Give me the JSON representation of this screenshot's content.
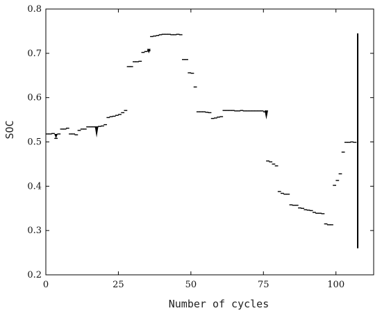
{
  "chart_data": {
    "type": "scatter",
    "title": "",
    "xlabel": "Number of cycles",
    "ylabel": "SOC",
    "xlim": [
      0,
      113
    ],
    "ylim": [
      0.2,
      0.8
    ],
    "xticks": [
      "0",
      "25",
      "50",
      "75",
      "100"
    ],
    "yticks": [
      "0.2",
      "0.3",
      "0.4",
      "0.5",
      "0.6",
      "0.7",
      "0.8"
    ],
    "grid": false,
    "legend": "none",
    "series": [
      {
        "points": [
          [
            0.5,
            0.518
          ],
          [
            1.5,
            0.518
          ],
          [
            2.5,
            0.519
          ],
          [
            3.5,
            0.508
          ],
          [
            4.5,
            0.518
          ],
          [
            5.5,
            0.529
          ],
          [
            6.5,
            0.529
          ],
          [
            7.5,
            0.531
          ],
          [
            8.5,
            0.518
          ],
          [
            9.5,
            0.518
          ],
          [
            10.5,
            0.516
          ],
          [
            11.5,
            0.526
          ],
          [
            12.5,
            0.529
          ],
          [
            13.5,
            0.529
          ],
          [
            14.5,
            0.534
          ],
          [
            15.5,
            0.534
          ],
          [
            16.5,
            0.534
          ],
          [
            17.5,
            0.533
          ],
          [
            18.5,
            0.535
          ],
          [
            19.5,
            0.536
          ],
          [
            20.5,
            0.539
          ],
          [
            21.5,
            0.555
          ],
          [
            22.5,
            0.557
          ],
          [
            23.5,
            0.558
          ],
          [
            24.5,
            0.56
          ],
          [
            25.5,
            0.562
          ],
          [
            26.5,
            0.566
          ],
          [
            27.5,
            0.571
          ],
          [
            28.5,
            0.67
          ],
          [
            29.5,
            0.67
          ],
          [
            30.5,
            0.681
          ],
          [
            31.5,
            0.681
          ],
          [
            32.5,
            0.682
          ],
          [
            33.5,
            0.702
          ],
          [
            34.5,
            0.704
          ],
          [
            35.5,
            0.706
          ],
          [
            36.5,
            0.738
          ],
          [
            37.5,
            0.739
          ],
          [
            38.5,
            0.74
          ],
          [
            39.5,
            0.742
          ],
          [
            40.5,
            0.743
          ],
          [
            41.5,
            0.743
          ],
          [
            42.5,
            0.743
          ],
          [
            43.5,
            0.742
          ],
          [
            44.5,
            0.742
          ],
          [
            45.5,
            0.743
          ],
          [
            46.5,
            0.742
          ],
          [
            47.5,
            0.686
          ],
          [
            48.5,
            0.686
          ],
          [
            49.5,
            0.656
          ],
          [
            50.5,
            0.655
          ],
          [
            51.5,
            0.624
          ],
          [
            52.5,
            0.568
          ],
          [
            53.5,
            0.568
          ],
          [
            54.5,
            0.568
          ],
          [
            55.5,
            0.567
          ],
          [
            56.5,
            0.566
          ],
          [
            57.5,
            0.553
          ],
          [
            58.5,
            0.554
          ],
          [
            59.5,
            0.556
          ],
          [
            60.5,
            0.557
          ],
          [
            61.5,
            0.571
          ],
          [
            62.5,
            0.571
          ],
          [
            63.5,
            0.571
          ],
          [
            64.5,
            0.571
          ],
          [
            65.5,
            0.57
          ],
          [
            66.5,
            0.57
          ],
          [
            67.5,
            0.571
          ],
          [
            68.5,
            0.57
          ],
          [
            69.5,
            0.57
          ],
          [
            70.5,
            0.57
          ],
          [
            71.5,
            0.57
          ],
          [
            72.5,
            0.57
          ],
          [
            73.5,
            0.57
          ],
          [
            74.5,
            0.57
          ],
          [
            75.5,
            0.568
          ],
          [
            76.5,
            0.457
          ],
          [
            77.5,
            0.455
          ],
          [
            78.5,
            0.45
          ],
          [
            79.5,
            0.446
          ],
          [
            80.5,
            0.388
          ],
          [
            81.5,
            0.384
          ],
          [
            82.5,
            0.382
          ],
          [
            83.5,
            0.382
          ],
          [
            84.5,
            0.358
          ],
          [
            85.5,
            0.357
          ],
          [
            86.5,
            0.357
          ],
          [
            87.5,
            0.351
          ],
          [
            88.5,
            0.35
          ],
          [
            89.5,
            0.347
          ],
          [
            90.5,
            0.346
          ],
          [
            91.5,
            0.345
          ],
          [
            92.5,
            0.341
          ],
          [
            93.5,
            0.339
          ],
          [
            94.5,
            0.339
          ],
          [
            95.5,
            0.338
          ],
          [
            96.5,
            0.315
          ],
          [
            97.5,
            0.313
          ],
          [
            98.5,
            0.313
          ],
          [
            99.5,
            0.402
          ],
          [
            100.5,
            0.413
          ],
          [
            101.5,
            0.428
          ],
          [
            102.5,
            0.477
          ],
          [
            103.5,
            0.499
          ],
          [
            104.5,
            0.499
          ],
          [
            105.5,
            0.5
          ],
          [
            106.5,
            0.499
          ]
        ],
        "spikes": [
          {
            "x": 3.5,
            "from": 0.518,
            "to": 0.508
          },
          {
            "x": 17.5,
            "from": 0.535,
            "to": 0.51
          },
          {
            "x": 35.5,
            "from": 0.71,
            "to": 0.7
          },
          {
            "x": 76.0,
            "from": 0.571,
            "to": 0.551
          }
        ],
        "vertical_line": {
          "x": 107.5,
          "from": 0.26,
          "to": 0.745
        }
      }
    ]
  }
}
